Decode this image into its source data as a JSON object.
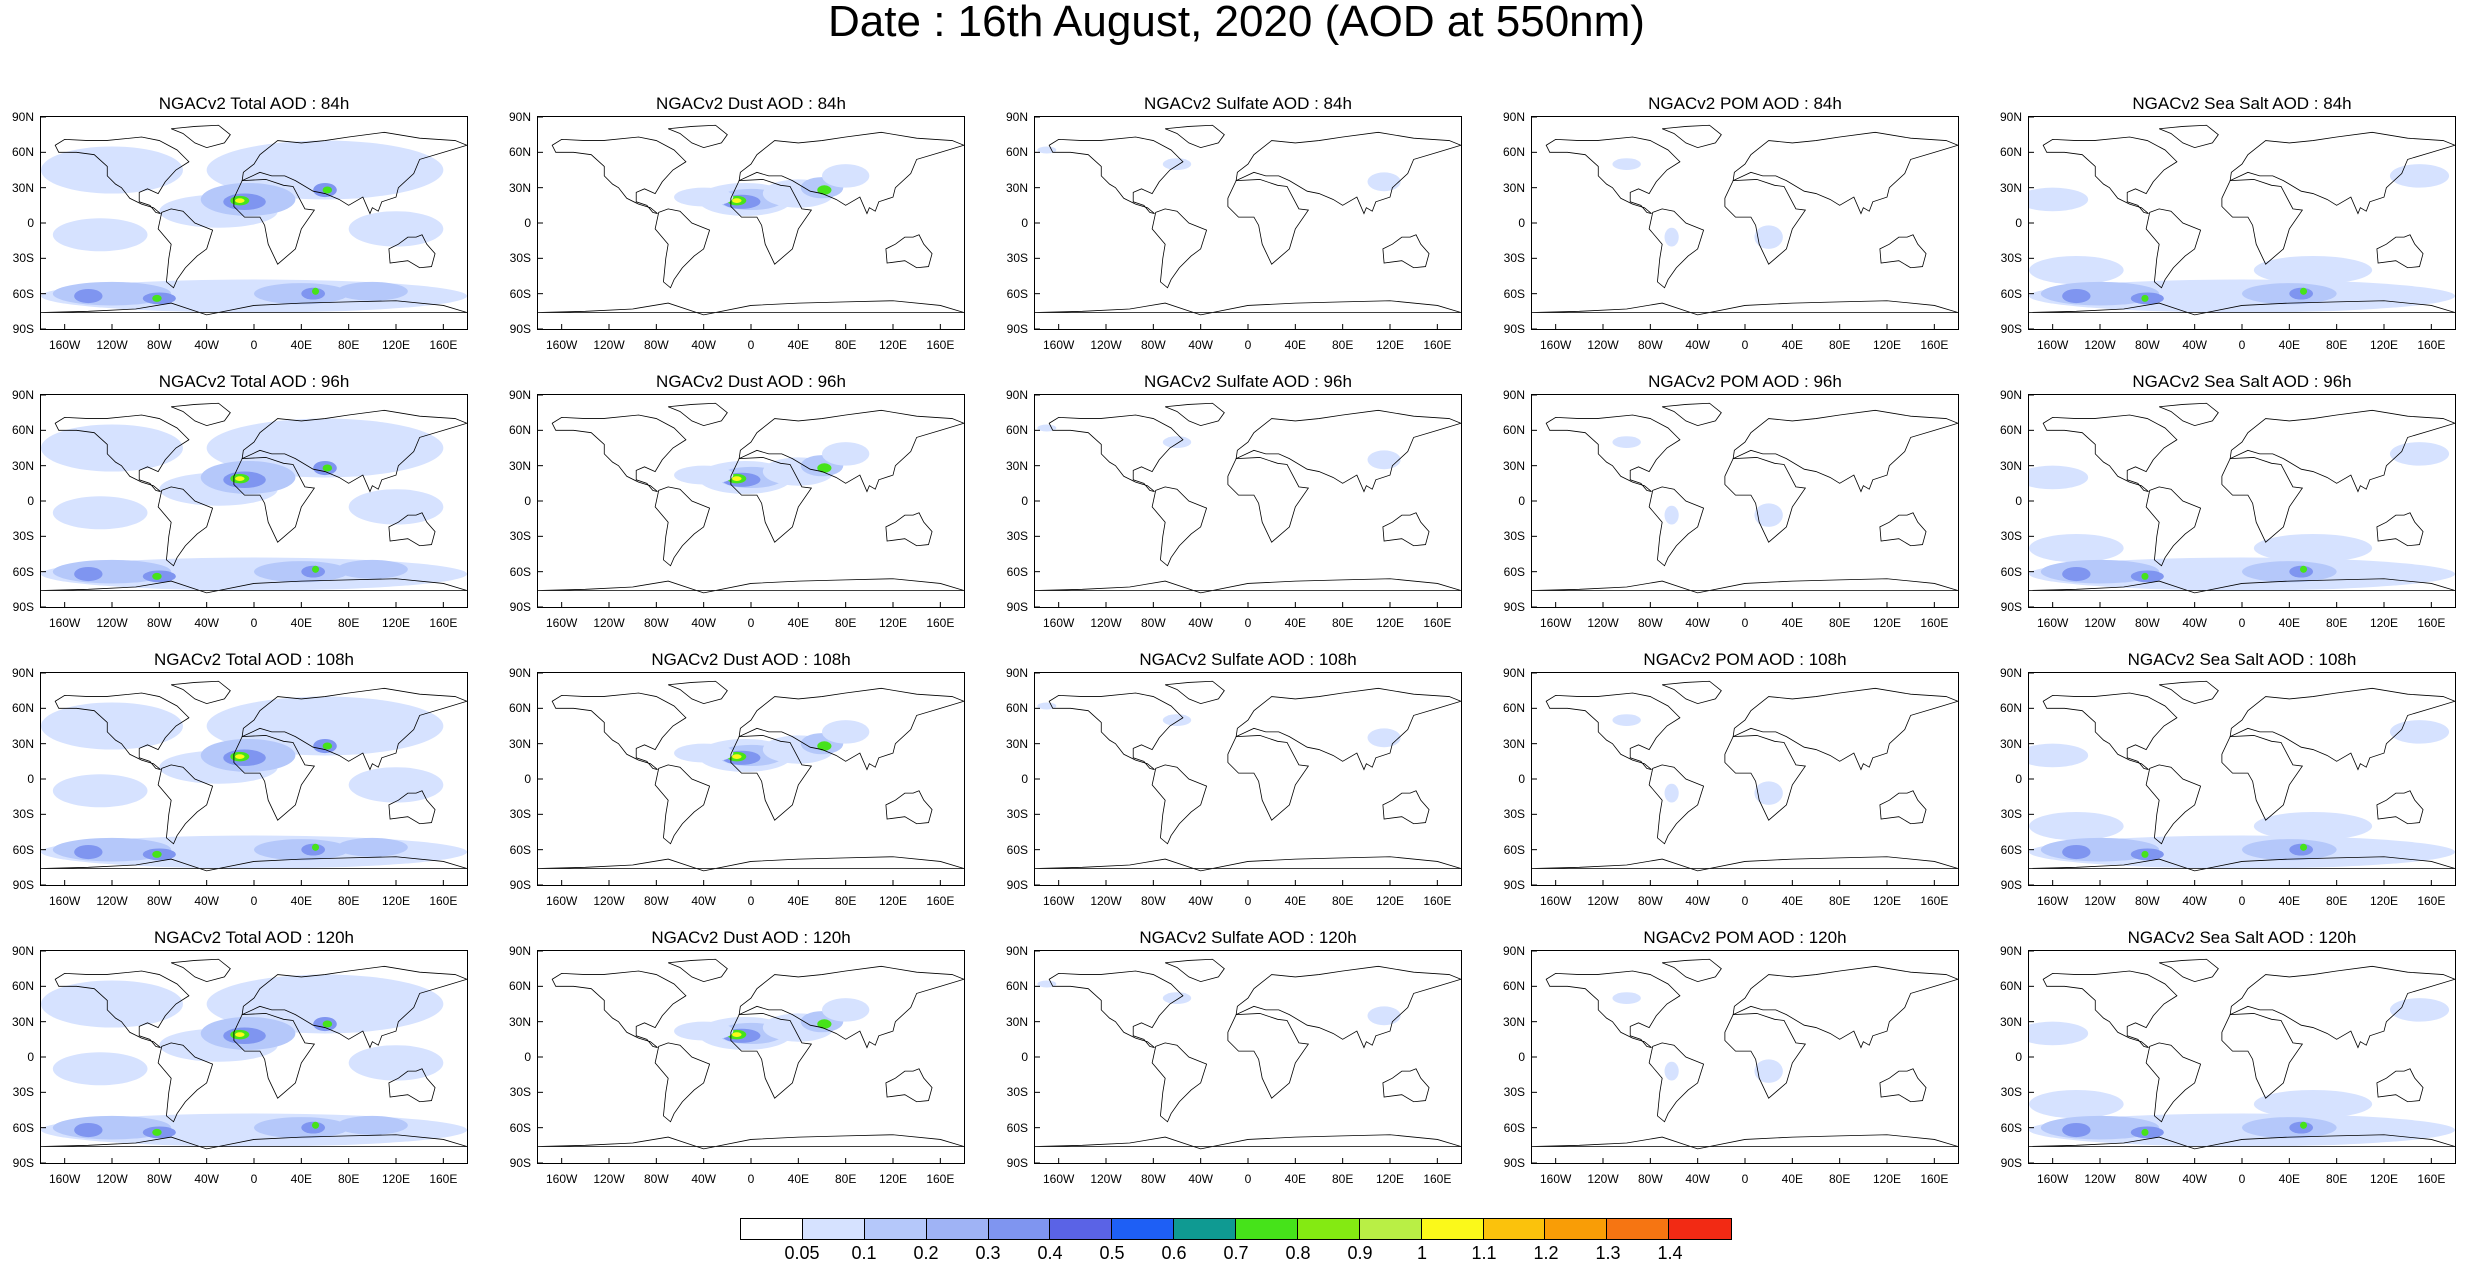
{
  "title": "Date : 16th August, 2020 (AOD at 550nm)",
  "lat_labels": [
    "90N",
    "60N",
    "30N",
    "0",
    "30S",
    "60S",
    "90S"
  ],
  "lon_labels": [
    "160W",
    "120W",
    "80W",
    "40W",
    "0",
    "40E",
    "80E",
    "120E",
    "160E"
  ],
  "lon_values": [
    -160,
    -120,
    -80,
    -40,
    0,
    40,
    80,
    120,
    160
  ],
  "lat_values": [
    90,
    60,
    30,
    0,
    -30,
    -60,
    -90
  ],
  "rows": [
    "84h",
    "96h",
    "108h",
    "120h"
  ],
  "columns": [
    "Total",
    "Dust",
    "Sulfate",
    "POM",
    "Sea Salt"
  ],
  "panels": [
    [
      "NGACv2 Total AOD : 84h",
      "NGACv2 Dust AOD : 84h",
      "NGACv2 Sulfate AOD : 84h",
      "NGACv2 POM AOD : 84h",
      "NGACv2 Sea Salt AOD : 84h"
    ],
    [
      "NGACv2 Total AOD : 96h",
      "NGACv2 Dust AOD : 96h",
      "NGACv2 Sulfate AOD : 96h",
      "NGACv2 POM AOD : 96h",
      "NGACv2 Sea Salt AOD : 96h"
    ],
    [
      "NGACv2 Total AOD : 108h",
      "NGACv2 Dust AOD : 108h",
      "NGACv2 Sulfate AOD : 108h",
      "NGACv2 POM AOD : 108h",
      "NGACv2 Sea Salt AOD : 108h"
    ],
    [
      "NGACv2 Total AOD : 120h",
      "NGACv2 Dust AOD : 120h",
      "NGACv2 Sulfate AOD : 120h",
      "NGACv2 POM AOD : 120h",
      "NGACv2 Sea Salt  AOD : 120h"
    ]
  ],
  "colorbar": {
    "labels": [
      "0.05",
      "0.1",
      "0.2",
      "0.3",
      "0.4",
      "0.5",
      "0.6",
      "0.7",
      "0.8",
      "0.9",
      "1",
      "1.1",
      "1.2",
      "1.3",
      "1.4"
    ],
    "colors": [
      "#ffffff",
      "#d6e2ff",
      "#b5c8fa",
      "#9fb3f5",
      "#7f95f0",
      "#5a63e6",
      "#1e5ff5",
      "#0f9a92",
      "#46e31a",
      "#84ea12",
      "#b9ef45",
      "#fbf91a",
      "#fbc20c",
      "#f99d06",
      "#f67512",
      "#f22a14"
    ]
  },
  "map_style": {
    "land_outline": "#000000",
    "aerosol_light": "#d6e2ff",
    "aerosol_medium": "#b5c8fa",
    "aerosol_dark": "#7f95f0",
    "aerosol_core": "#5a63e6",
    "hotspot_green": "#46e31a",
    "hotspot_yellow": "#fbf91a"
  },
  "coverage": {
    "Total": "high",
    "Dust": "dust",
    "Sulfate": "low",
    "POM": "pom",
    "Sea Salt": "seasalt"
  }
}
